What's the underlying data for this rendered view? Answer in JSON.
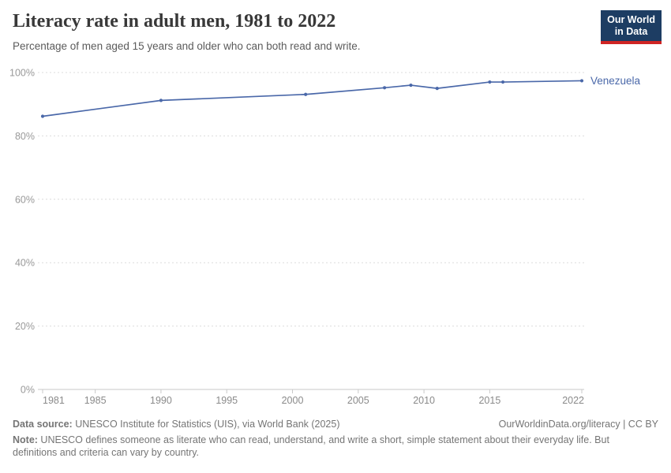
{
  "header": {
    "title": "Literacy rate in adult men, 1981 to 2022",
    "subtitle": "Percentage of men aged 15 years and older who can both read and write.",
    "logo": {
      "line1": "Our World",
      "line2": "in Data"
    }
  },
  "chart_data": {
    "type": "line",
    "title": "Literacy rate in adult men, 1981 to 2022",
    "x": [
      1981,
      1990,
      2001,
      2007,
      2009,
      2011,
      2015,
      2016,
      2022
    ],
    "series": [
      {
        "name": "Venezuela",
        "color": "#4a68a9",
        "values": [
          86.2,
          91.2,
          93.1,
          95.2,
          96.0,
          95.0,
          97.0,
          97.0,
          97.4
        ]
      }
    ],
    "xlim": [
      1981,
      2022
    ],
    "ylim": [
      0,
      100
    ],
    "xticks": [
      1981,
      1985,
      1990,
      1995,
      2000,
      2005,
      2010,
      2015,
      2022
    ],
    "yticks": [
      0,
      20,
      40,
      60,
      80,
      100
    ],
    "ytick_suffix": "%",
    "grid": true,
    "legend_position": "end-of-line-label",
    "colors": {
      "gridline": "#dcdcdc",
      "axis": "#c9c9c9",
      "y_tick_label": "#999999",
      "x_tick_label": "#8a8a8a"
    }
  },
  "footer": {
    "source_label": "Data source:",
    "source_text": " UNESCO Institute for Statistics (UIS), via World Bank (2025)",
    "link_text": "OurWorldinData.org/literacy | CC BY",
    "note_label": "Note:",
    "note_text": " UNESCO defines someone as literate who can read, understand, and write a short, simple statement about their everyday life. But definitions and criteria can vary by country."
  }
}
